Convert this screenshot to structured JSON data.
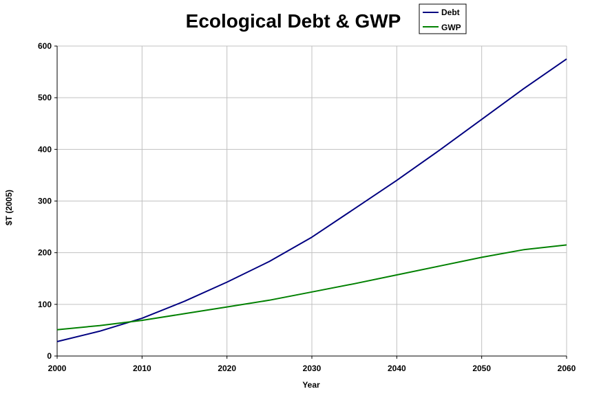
{
  "chart_data": {
    "type": "line",
    "title": "Ecological Debt & GWP",
    "xlabel": "Year",
    "ylabel": "$T (2005)",
    "xlim": [
      2000,
      2060
    ],
    "ylim": [
      0,
      600
    ],
    "x_ticks": [
      2000,
      2010,
      2020,
      2030,
      2040,
      2050,
      2060
    ],
    "y_ticks": [
      0,
      100,
      200,
      300,
      400,
      500,
      600
    ],
    "grid": true,
    "legend_position": "top-right",
    "x": [
      2000,
      2005,
      2010,
      2015,
      2020,
      2025,
      2030,
      2035,
      2040,
      2045,
      2050,
      2055,
      2060
    ],
    "series": [
      {
        "name": "Debt",
        "color": "#000080",
        "values": [
          28,
          48,
          73,
          106,
          143,
          183,
          230,
          285,
          340,
          398,
          458,
          518,
          575
        ]
      },
      {
        "name": "GWP",
        "color": "#008000",
        "values": [
          51,
          59,
          69,
          82,
          95,
          108,
          124,
          140,
          157,
          174,
          191,
          206,
          215
        ]
      }
    ]
  }
}
